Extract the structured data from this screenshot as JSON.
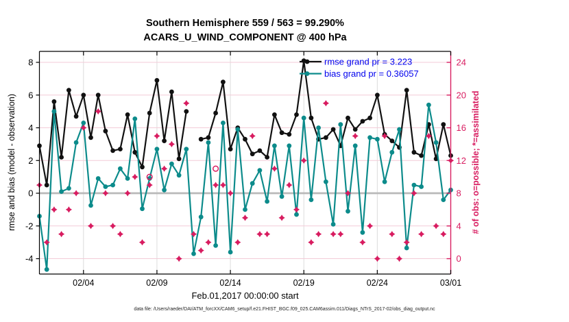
{
  "title": {
    "line1": "Southern Hemisphere 559 / 563 = 99.290%",
    "line2": "ACARS_U_WIND_COMPONENT @ 400 hPa"
  },
  "axes": {
    "left_label": "rmse and bias (model - observation)",
    "right_label": "# of obs: o=possible; *=assimilated",
    "x_label": "Feb.01,2017 00:00:00 start"
  },
  "legend": [
    {
      "label": "rmse grand pr = 3.223",
      "series": "rmse"
    },
    {
      "label": "bias grand pr = 0.36057",
      "series": "bias"
    }
  ],
  "caption": "data file: /Users/raeder/DAI/ATM_forcXX/CAM6_setup/f.e21.FHIST_BGC.f09_025.CAM6assim.011/Diags_NTrS_2017-02/obs_diag_output.nc",
  "colors": {
    "rmse": "#111111",
    "bias": "#0c8b8b",
    "obs": "#d81c60",
    "legend_text": "#0000ee",
    "zero_line": "#b9b9b9",
    "grid_h": "#f3cbd7",
    "grid_v": "#dcdcdc",
    "spine": "#000000"
  },
  "chart_data": {
    "type": "line",
    "title": "Southern Hemisphere 559 / 563 = 99.290% | ACARS_U_WIND_COMPONENT @ 400 hPa",
    "x_description": "12-hourly time steps starting Feb.01,2017 00:00:00, index 0 = Feb 1 00Z, index 56 = Mar 1 00Z",
    "x_count": 57,
    "xlim": [
      0,
      56
    ],
    "ylim_left": [
      -4.94,
      8.67
    ],
    "ylim_right": [
      -1.89,
      25.35
    ],
    "left_ticks": [
      8,
      6,
      4,
      2,
      0,
      -2,
      -4
    ],
    "right_ticks": [
      24,
      20,
      16,
      12,
      8,
      4,
      0
    ],
    "x_ticks": [
      {
        "index": 6,
        "label": "02/04"
      },
      {
        "index": 16,
        "label": "02/09"
      },
      {
        "index": 26,
        "label": "02/14"
      },
      {
        "index": 36,
        "label": "02/19"
      },
      {
        "index": 46,
        "label": "02/24"
      },
      {
        "index": 56,
        "label": "03/01"
      }
    ],
    "series": [
      {
        "name": "rmse",
        "axis": "left",
        "marker": "filled-circle",
        "values": [
          2.9,
          0.5,
          5.6,
          2.2,
          6.3,
          4.7,
          6.0,
          3.4,
          6.0,
          3.8,
          2.6,
          2.7,
          4.8,
          2.5,
          1.6,
          4.9,
          6.9,
          3.2,
          6.2,
          2.1,
          5.0,
          null,
          3.3,
          3.4,
          4.9,
          6.8,
          2.7,
          4.0,
          3.3,
          2.4,
          2.6,
          2.2,
          4.8,
          3.7,
          3.6,
          4.8,
          8.1,
          4.6,
          3.3,
          3.4,
          3.9,
          2.9,
          4.6,
          3.9,
          4.4,
          4.6,
          6.0,
          3.6,
          3.2,
          2.8,
          6.3,
          2.5,
          2.3,
          4.2,
          2.1,
          4.2,
          2.3
        ]
      },
      {
        "name": "bias",
        "axis": "left",
        "marker": "filled-circle",
        "values": [
          -1.4,
          -4.66,
          5.0,
          0.1,
          0.3,
          3.1,
          4.3,
          -0.75,
          0.9,
          0.4,
          0.5,
          1.5,
          0.9,
          4.55,
          -0.95,
          0.9,
          2.7,
          0.2,
          1.8,
          1.1,
          2.7,
          -3.7,
          -1.45,
          3.1,
          -3.2,
          4.3,
          -3.6,
          3.9,
          -1.0,
          0.6,
          1.4,
          -0.5,
          2.9,
          -0.2,
          2.9,
          -1.3,
          4.6,
          -0.4,
          4.0,
          0.7,
          -1.9,
          4.2,
          -1.1,
          2.9,
          -2.4,
          3.4,
          3.3,
          0.7,
          2.5,
          3.9,
          -3.35,
          0.5,
          0.4,
          5.4,
          3.1,
          -0.4,
          0.2
        ]
      },
      {
        "name": "obs_assimilated",
        "axis": "right",
        "marker": "star4",
        "values": [
          9,
          2,
          6,
          3,
          6,
          8,
          16,
          4,
          18,
          8,
          4,
          3,
          8,
          10,
          2,
          9,
          15,
          11,
          14,
          0,
          19,
          3,
          1,
          2,
          9,
          9,
          8,
          2,
          5,
          15,
          3,
          3,
          11,
          5,
          9,
          6,
          12,
          2,
          3,
          19,
          3,
          3,
          8,
          15,
          2,
          4,
          0,
          15,
          3,
          0,
          2,
          8,
          3,
          15,
          4,
          3,
          12
        ]
      },
      {
        "name": "obs_possible",
        "axis": "right",
        "marker": "open-circle",
        "points": [
          {
            "index": 15,
            "value": 10
          },
          {
            "index": 24,
            "value": 11
          }
        ]
      }
    ],
    "grid": {
      "horizontal": true,
      "vertical": true
    },
    "legend_position": "top-right-inside",
    "zero_line_left_axis": 0
  }
}
